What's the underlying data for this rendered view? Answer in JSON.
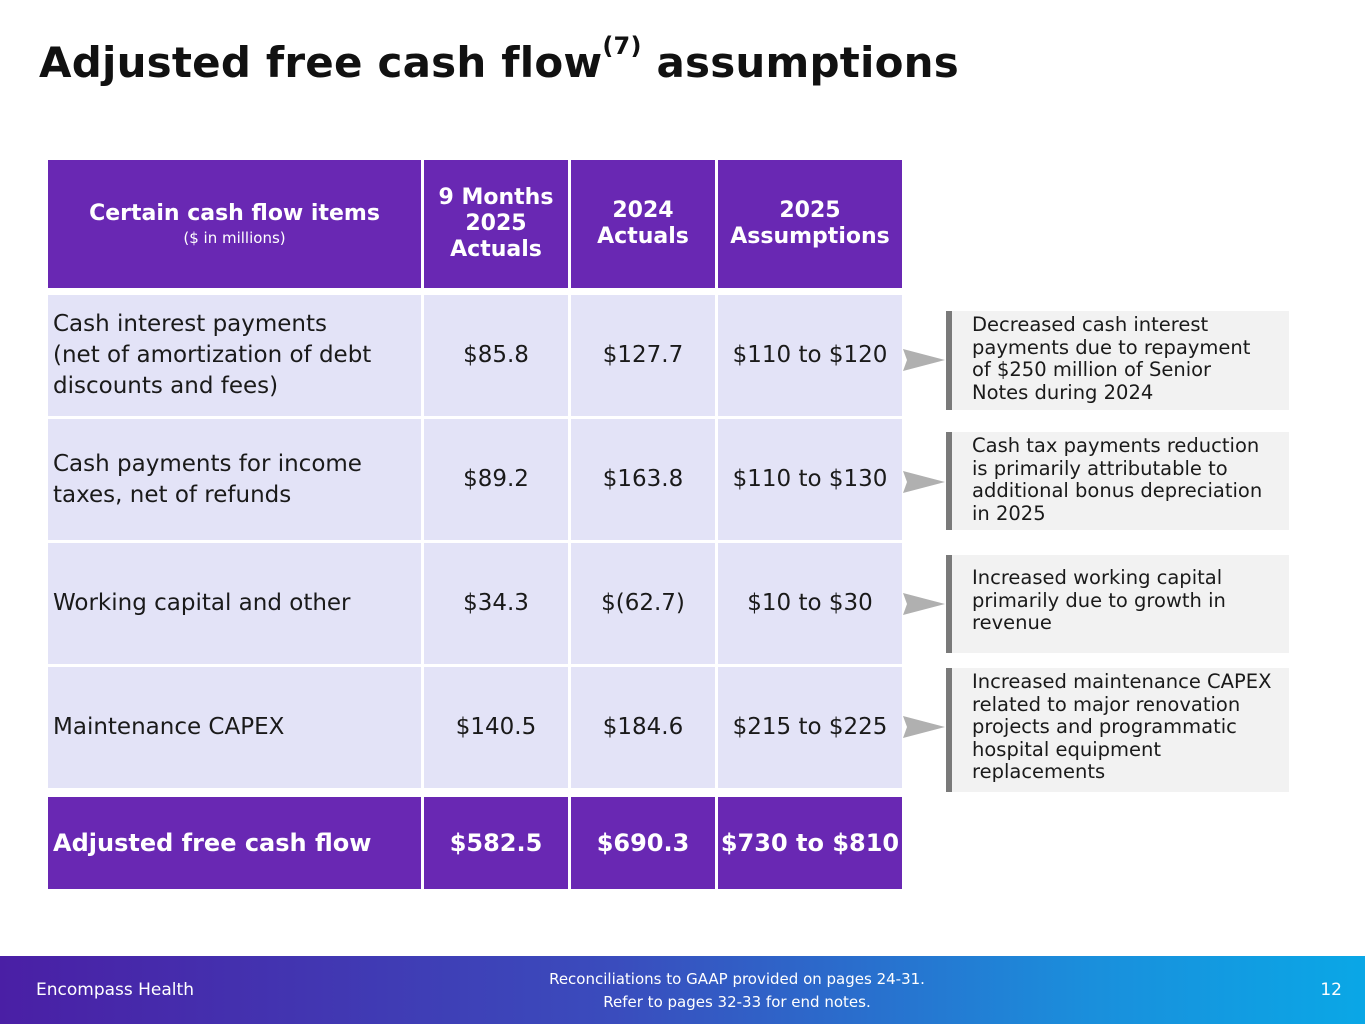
{
  "title": {
    "main": "Adjusted free cash flow",
    "sup": "(7)",
    "rest": " assumptions"
  },
  "table": {
    "headers": {
      "item": "Certain cash flow items",
      "item_sub": "($ in millions)",
      "col1": [
        "9 Months",
        "2025",
        "Actuals"
      ],
      "col2": [
        "2024",
        "Actuals"
      ],
      "col3": [
        "2025",
        "Assumptions"
      ]
    },
    "rows": [
      {
        "label": [
          "Cash interest payments",
          "(net of amortization of debt",
          "discounts and fees)"
        ],
        "m9": "$85.8",
        "y2024": "$127.7",
        "y2025": "$110 to $120"
      },
      {
        "label": [
          "Cash payments for income",
          "taxes, net of refunds"
        ],
        "m9": "$89.2",
        "y2024": "$163.8",
        "y2025": "$110 to $130"
      },
      {
        "label": [
          "Working capital and other"
        ],
        "m9": "$34.3",
        "y2024": "$(62.7)",
        "y2025": "$10 to $30"
      },
      {
        "label": [
          "Maintenance CAPEX"
        ],
        "m9": "$140.5",
        "y2024": "$184.6",
        "y2025": "$215 to $225"
      }
    ],
    "total": {
      "label": "Adjusted free cash flow",
      "m9": "$582.5",
      "y2024": "$690.3",
      "y2025": "$730 to $810"
    }
  },
  "notes": [
    [
      "Decreased cash interest",
      "payments due to repayment",
      "of $250 million of Senior",
      "Notes during 2024"
    ],
    [
      "Cash tax payments reduction",
      "is primarily attributable to",
      "additional bonus depreciation",
      "in 2025"
    ],
    [
      "Increased working capital",
      "primarily due to growth in",
      "revenue"
    ],
    [
      "Increased maintenance CAPEX",
      "related to major renovation",
      "projects and programmatic",
      "hospital equipment",
      "replacements"
    ]
  ],
  "footer": {
    "brand": "Encompass Health",
    "line1": "Reconciliations to GAAP provided on pages 24-31.",
    "line2": "Refer to pages 32-33 for end notes.",
    "page": "12"
  },
  "colors": {
    "header": "#6928b3",
    "row": "#e3e3f7",
    "note_bg": "#f2f2f2",
    "note_bar": "#7a7a7a",
    "arrow": "#b0b0b0"
  }
}
